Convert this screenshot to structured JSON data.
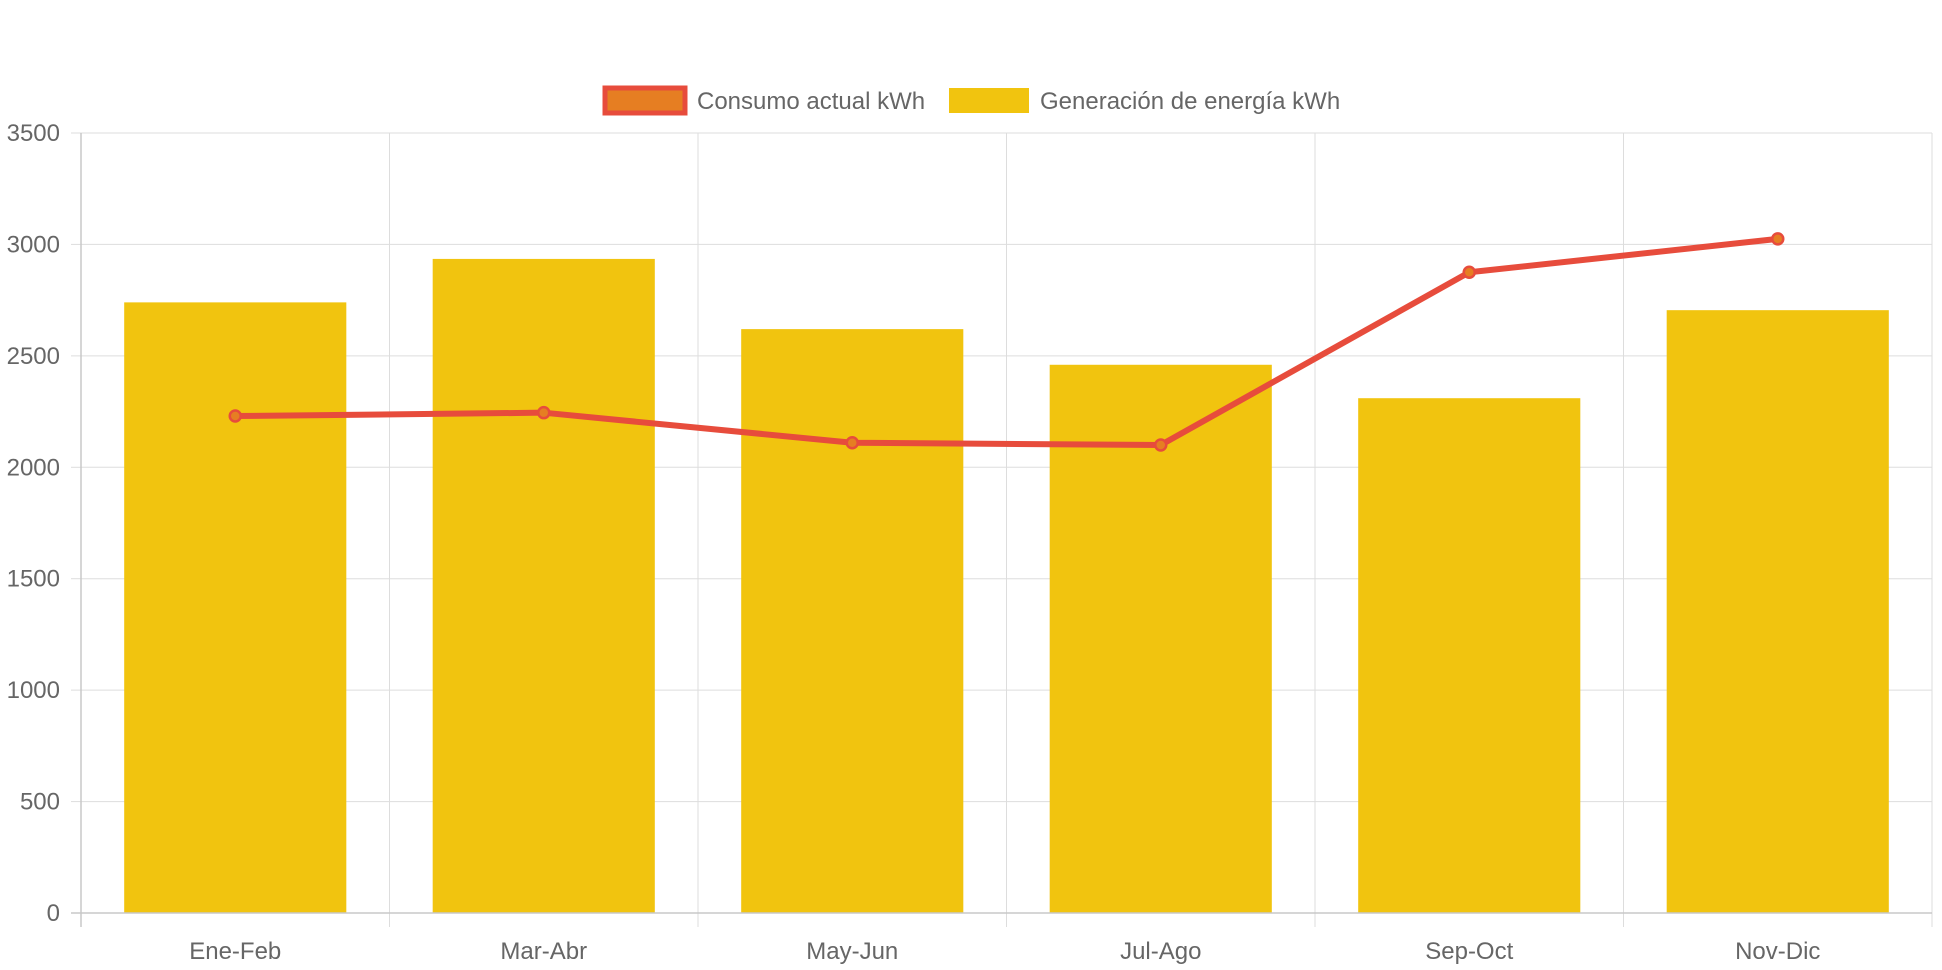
{
  "chart_data": {
    "type": "bar",
    "categories": [
      "Ene-Feb",
      "Mar-Abr",
      "May-Jun",
      "Jul-Ago",
      "Sep-Oct",
      "Nov-Dic"
    ],
    "series": [
      {
        "name": "Consumo actual kWh",
        "type": "line",
        "values": [
          2230,
          2245,
          2110,
          2100,
          2875,
          3025
        ],
        "color": "#e74c3c",
        "point_color": "#e67e22"
      },
      {
        "name": "Generación de energía kWh",
        "type": "bar",
        "values": [
          2740,
          2935,
          2620,
          2460,
          2310,
          2705
        ],
        "color": "#f1c40f"
      }
    ],
    "ylim": [
      0,
      3500
    ],
    "yticks": [
      0,
      500,
      1000,
      1500,
      2000,
      2500,
      3000,
      3500
    ],
    "grid": true,
    "legend_position": "top",
    "title": "",
    "xlabel": "",
    "ylabel": ""
  },
  "legend": {
    "consumo_label": "Consumo actual kWh",
    "generacion_label": "Generación de energía kWh"
  },
  "colors": {
    "grid": "#dddddd",
    "axis": "#c8c8c8",
    "text": "#666666"
  }
}
